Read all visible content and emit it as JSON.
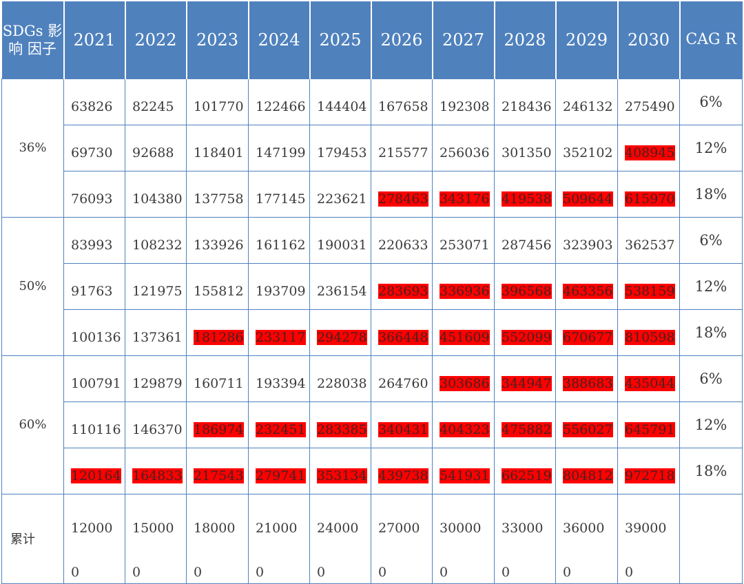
{
  "header": {
    "factor_label": "SDGs 影响 因子",
    "years": [
      "2021",
      "2022",
      "2023",
      "2024",
      "2025",
      "2026",
      "2027",
      "2028",
      "2029",
      "2030"
    ],
    "cagr_label": "CAG R"
  },
  "highlight_color": "#fe0000",
  "groups": [
    {
      "factor": "36%",
      "rows": [
        {
          "values": [
            "63826",
            "82245",
            "101770",
            "122466",
            "144404",
            "167658",
            "192308",
            "218436",
            "246132",
            "275490"
          ],
          "highlight": [
            false,
            false,
            false,
            false,
            false,
            false,
            false,
            false,
            false,
            false
          ],
          "cagr": "6%"
        },
        {
          "values": [
            "69730",
            "92688",
            "118401",
            "147199",
            "179453",
            "215577",
            "256036",
            "301350",
            "352102",
            "408945"
          ],
          "highlight": [
            false,
            false,
            false,
            false,
            false,
            false,
            false,
            false,
            false,
            true
          ],
          "cagr": "12%"
        },
        {
          "values": [
            "76093",
            "104380",
            "137758",
            "177145",
            "223621",
            "278463",
            "343176",
            "419538",
            "509644",
            "615970"
          ],
          "highlight": [
            false,
            false,
            false,
            false,
            false,
            true,
            true,
            true,
            true,
            true
          ],
          "cagr": "18%"
        }
      ]
    },
    {
      "factor": "50%",
      "rows": [
        {
          "values": [
            "83993",
            "108232",
            "133926",
            "161162",
            "190031",
            "220633",
            "253071",
            "287456",
            "323903",
            "362537"
          ],
          "highlight": [
            false,
            false,
            false,
            false,
            false,
            false,
            false,
            false,
            false,
            false
          ],
          "cagr": "6%"
        },
        {
          "values": [
            "91763",
            "121975",
            "155812",
            "193709",
            "236154",
            "283693",
            "336936",
            "396568",
            "463356",
            "538159"
          ],
          "highlight": [
            false,
            false,
            false,
            false,
            false,
            true,
            true,
            true,
            true,
            true
          ],
          "cagr": "12%"
        },
        {
          "values": [
            "100136",
            "137361",
            "181286",
            "233117",
            "294278",
            "366448",
            "451609",
            "552099",
            "670677",
            "810598"
          ],
          "highlight": [
            false,
            false,
            true,
            true,
            true,
            true,
            true,
            true,
            true,
            true
          ],
          "cagr": "18%"
        }
      ]
    },
    {
      "factor": "60%",
      "rows": [
        {
          "values": [
            "100791",
            "129879",
            "160711",
            "193394",
            "228038",
            "264760",
            "303686",
            "344947",
            "388683",
            "435044"
          ],
          "highlight": [
            false,
            false,
            false,
            false,
            false,
            false,
            true,
            true,
            true,
            true
          ],
          "cagr": "6%"
        },
        {
          "values": [
            "110116",
            "146370",
            "186974",
            "232451",
            "283385",
            "340431",
            "404323",
            "475882",
            "556027",
            "645791"
          ],
          "highlight": [
            false,
            false,
            true,
            true,
            true,
            true,
            true,
            true,
            true,
            true
          ],
          "cagr": "12%"
        },
        {
          "values": [
            "120164",
            "164833",
            "217543",
            "279741",
            "353134",
            "439738",
            "541931",
            "662519",
            "804812",
            "972718"
          ],
          "highlight": [
            true,
            true,
            true,
            true,
            true,
            true,
            true,
            true,
            true,
            true
          ],
          "cagr": "18%"
        }
      ]
    }
  ],
  "total": {
    "label": "累计",
    "line1": [
      "12000",
      "15000",
      "18000",
      "21000",
      "24000",
      "27000",
      "30000",
      "33000",
      "36000",
      "39000"
    ],
    "line2": [
      "0",
      "0",
      "0",
      "0",
      "0",
      "0",
      "0",
      "0",
      "0",
      "0"
    ],
    "cagr": ""
  }
}
